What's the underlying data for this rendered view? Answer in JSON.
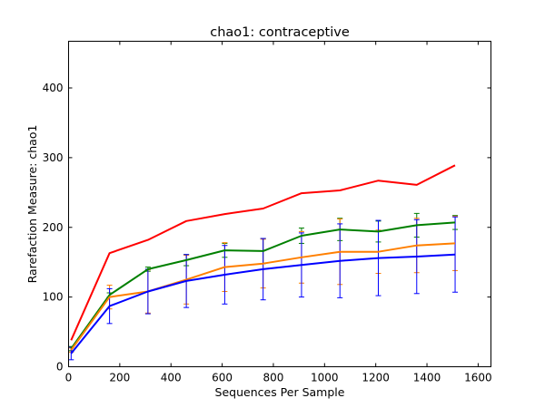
{
  "chart_data": {
    "type": "line",
    "title": "chao1: contraceptive",
    "xlabel": "Sequences Per Sample",
    "ylabel": "Rarefaction Measure: chao1",
    "xlim": [
      0,
      1650
    ],
    "ylim": [
      0,
      467
    ],
    "xticks": [
      0,
      200,
      400,
      600,
      800,
      1000,
      1200,
      1400,
      1600
    ],
    "yticks": [
      0,
      100,
      200,
      300,
      400
    ],
    "grid": false,
    "x": [
      10,
      160,
      310,
      460,
      610,
      760,
      910,
      1060,
      1210,
      1360,
      1510
    ],
    "series": [
      {
        "color": "#ff0000",
        "values": [
          38,
          163,
          182,
          209,
          219,
          227,
          249,
          253,
          267,
          261,
          289
        ],
        "err": [
          0,
          0,
          0,
          0,
          0,
          0,
          0,
          0,
          0,
          0,
          0
        ]
      },
      {
        "color": "#008000",
        "values": [
          26,
          103,
          140,
          153,
          167,
          166,
          188,
          197,
          194,
          203,
          207
        ],
        "err": [
          3,
          3,
          3,
          8,
          10,
          18,
          11,
          16,
          15,
          17,
          10
        ]
      },
      {
        "color": "#ff7f00",
        "values": [
          24,
          100,
          108,
          125,
          143,
          148,
          157,
          165,
          165,
          174,
          177
        ],
        "err": [
          3,
          17,
          31,
          35,
          35,
          35,
          37,
          47,
          31,
          39,
          39
        ]
      },
      {
        "color": "#0000ff",
        "values": [
          19,
          87,
          108,
          123,
          132,
          140,
          146,
          152,
          156,
          158,
          161
        ],
        "err": [
          9,
          25,
          32,
          38,
          42,
          44,
          46,
          53,
          54,
          53,
          54
        ]
      }
    ]
  }
}
